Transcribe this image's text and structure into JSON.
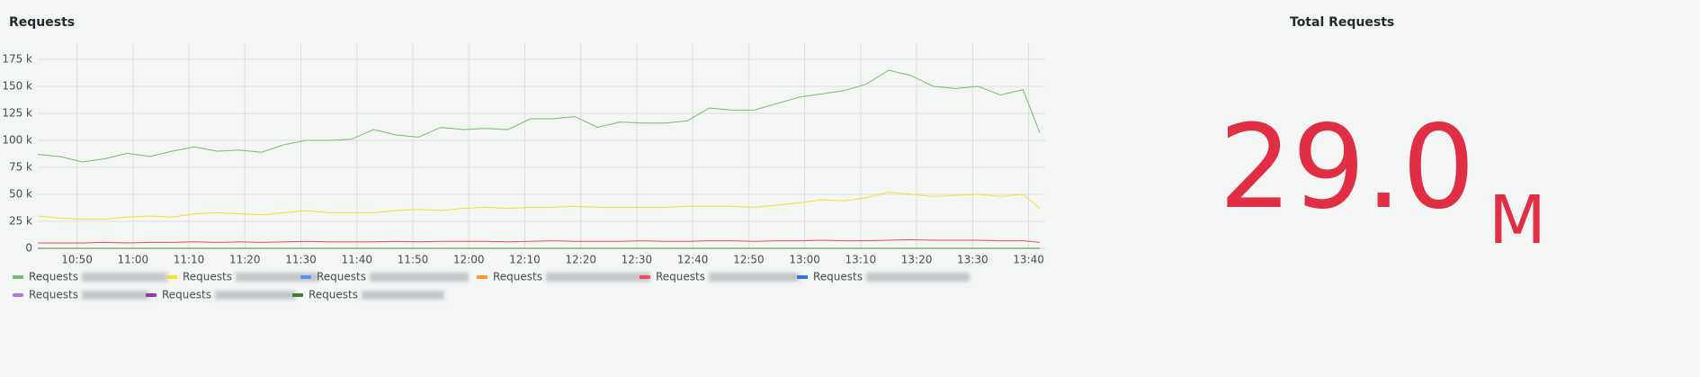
{
  "panels": {
    "graph": {
      "chart_data": {
        "type": "line",
        "title": "Requests",
        "x": [
          "10:43",
          "10:47",
          "10:51",
          "10:55",
          "10:59",
          "11:03",
          "11:07",
          "11:11",
          "11:15",
          "11:19",
          "11:23",
          "11:27",
          "11:31",
          "11:35",
          "11:39",
          "11:43",
          "11:47",
          "11:51",
          "11:55",
          "11:59",
          "12:03",
          "12:07",
          "12:11",
          "12:15",
          "12:19",
          "12:23",
          "12:27",
          "12:31",
          "12:35",
          "12:39",
          "12:43",
          "12:47",
          "12:51",
          "12:55",
          "12:59",
          "13:03",
          "13:07",
          "13:11",
          "13:15",
          "13:19",
          "13:23",
          "13:27",
          "13:31",
          "13:35",
          "13:39",
          "13:42"
        ],
        "xlim": [
          "10:43",
          "13:42"
        ],
        "xticks": [
          "10:50",
          "11:00",
          "11:10",
          "11:20",
          "11:30",
          "11:40",
          "11:50",
          "12:00",
          "12:10",
          "12:20",
          "12:30",
          "12:40",
          "12:50",
          "13:00",
          "13:10",
          "13:20",
          "13:30",
          "13:40"
        ],
        "ylim": [
          0,
          190000
        ],
        "yticks": [
          0,
          {
            "value": 25000,
            "label": "25 k"
          },
          {
            "value": 50000,
            "label": "50 k"
          },
          {
            "value": 75000,
            "label": "75 k"
          },
          {
            "value": 100000,
            "label": "100 k"
          },
          {
            "value": 125000,
            "label": "125 k"
          },
          {
            "value": 150000,
            "label": "150 k"
          },
          {
            "value": 175000,
            "label": "175 k"
          }
        ],
        "grid": true,
        "series": [
          {
            "name": "Requests",
            "color": "#73bf69",
            "values": [
              87000,
              85000,
              80000,
              83000,
              88000,
              85000,
              90000,
              94000,
              90000,
              91000,
              89000,
              96000,
              100000,
              100000,
              101000,
              110000,
              105000,
              103000,
              112000,
              110000,
              111000,
              110000,
              120000,
              120000,
              122000,
              112000,
              117000,
              116000,
              116000,
              118000,
              130000,
              128000,
              128000,
              134000,
              140000,
              143000,
              146000,
              152000,
              165000,
              160000,
              150000,
              148000,
              150000,
              142000,
              147000,
              107000
            ]
          },
          {
            "name": "Requests",
            "color": "#fade2a",
            "values": [
              30000,
              28000,
              27000,
              27000,
              29000,
              30000,
              29000,
              32000,
              33000,
              32000,
              31000,
              33000,
              35000,
              33000,
              33000,
              33000,
              35000,
              36000,
              35000,
              37000,
              38000,
              37000,
              38000,
              38000,
              39000,
              38000,
              38000,
              38000,
              38000,
              39000,
              39000,
              39000,
              38000,
              40000,
              42000,
              45000,
              44000,
              47000,
              52000,
              50000,
              48000,
              49000,
              50000,
              48000,
              50000,
              37000
            ]
          },
          {
            "name": "Requests",
            "color": "#5794f2",
            "values": [
              0,
              0,
              0,
              0,
              0,
              0,
              0,
              0,
              0,
              0,
              0,
              0,
              0,
              0,
              0,
              0,
              0,
              0,
              0,
              0,
              0,
              0,
              0,
              0,
              0,
              0,
              0,
              0,
              0,
              0,
              0,
              0,
              0,
              0,
              0,
              0,
              0,
              0,
              0,
              0,
              0,
              0,
              0,
              0,
              0,
              0
            ]
          },
          {
            "name": "Requests",
            "color": "#ff9830",
            "values": [
              0,
              0,
              0,
              0,
              0,
              0,
              0,
              0,
              0,
              0,
              0,
              0,
              0,
              0,
              0,
              0,
              0,
              0,
              0,
              0,
              0,
              0,
              0,
              0,
              0,
              0,
              0,
              0,
              0,
              0,
              0,
              0,
              0,
              0,
              0,
              0,
              0,
              0,
              0,
              0,
              0,
              0,
              0,
              0,
              0,
              0
            ]
          },
          {
            "name": "Requests",
            "color": "#f2495c",
            "values": [
              5000,
              5000,
              5000,
              5500,
              5000,
              5500,
              5500,
              6000,
              5500,
              6000,
              5500,
              6000,
              6500,
              6000,
              6000,
              6000,
              6500,
              6000,
              6500,
              6500,
              6500,
              6000,
              6500,
              7000,
              6500,
              6500,
              6500,
              7000,
              6500,
              6500,
              7000,
              7000,
              6500,
              7000,
              7000,
              7500,
              7000,
              7000,
              7500,
              8000,
              7500,
              7500,
              7500,
              7000,
              7000,
              5500
            ]
          },
          {
            "name": "Requests",
            "color": "#3274d9",
            "values": [
              0,
              0,
              0,
              0,
              0,
              0,
              0,
              0,
              0,
              0,
              0,
              0,
              0,
              0,
              0,
              0,
              0,
              0,
              0,
              0,
              0,
              0,
              0,
              0,
              0,
              0,
              0,
              0,
              0,
              0,
              0,
              0,
              0,
              0,
              0,
              0,
              0,
              0,
              0,
              0,
              0,
              0,
              0,
              0,
              0,
              0
            ]
          },
          {
            "name": "Requests",
            "color": "#b877d9",
            "values": [
              0,
              0,
              0,
              0,
              0,
              0,
              0,
              0,
              0,
              0,
              0,
              0,
              0,
              0,
              0,
              0,
              0,
              0,
              0,
              0,
              0,
              0,
              0,
              0,
              0,
              0,
              0,
              0,
              0,
              0,
              0,
              0,
              0,
              0,
              0,
              0,
              0,
              0,
              0,
              0,
              0,
              0,
              0,
              0,
              0,
              0
            ]
          },
          {
            "name": "Requests",
            "color": "#8f3bb8",
            "values": [
              0,
              0,
              0,
              0,
              0,
              0,
              0,
              0,
              0,
              0,
              0,
              0,
              0,
              0,
              0,
              0,
              0,
              0,
              0,
              0,
              0,
              0,
              0,
              0,
              0,
              0,
              0,
              0,
              0,
              0,
              0,
              0,
              0,
              0,
              0,
              0,
              0,
              0,
              0,
              0,
              0,
              0,
              0,
              0,
              0,
              0
            ]
          },
          {
            "name": "Requests",
            "color": "#37872d",
            "values": [
              0,
              0,
              0,
              0,
              0,
              0,
              0,
              0,
              0,
              0,
              0,
              0,
              0,
              0,
              0,
              0,
              0,
              0,
              0,
              0,
              0,
              0,
              0,
              0,
              0,
              0,
              0,
              0,
              0,
              0,
              0,
              0,
              0,
              0,
              0,
              0,
              0,
              0,
              0,
              0,
              0,
              0,
              0,
              0,
              0,
              0
            ]
          }
        ]
      }
    },
    "stat": {
      "title": "Total Requests",
      "value": "29.0",
      "unit": "M",
      "color": "#e02f44"
    }
  }
}
